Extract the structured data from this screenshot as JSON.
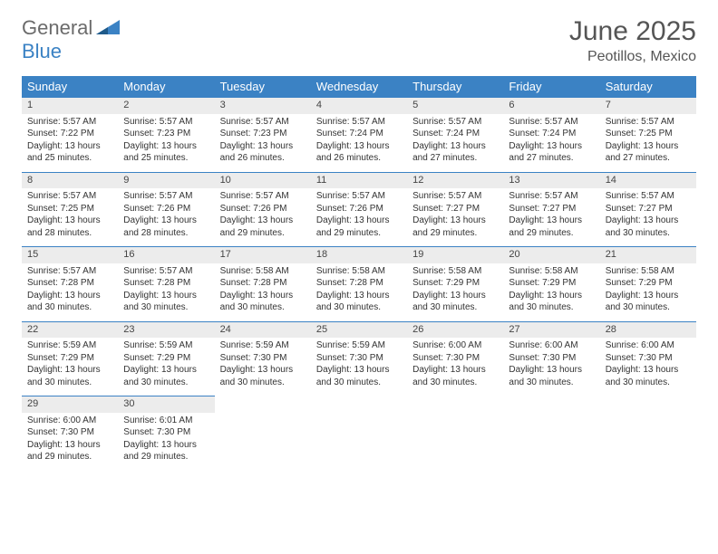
{
  "brand": {
    "general": "General",
    "blue": "Blue"
  },
  "title": "June 2025",
  "location": "Peotillos, Mexico",
  "colors": {
    "header_bg": "#3b82c4",
    "header_fg": "#ffffff",
    "daynum_bg": "#ececec",
    "border": "#3b82c4",
    "text": "#333333",
    "title_fg": "#555555"
  },
  "dayNames": [
    "Sunday",
    "Monday",
    "Tuesday",
    "Wednesday",
    "Thursday",
    "Friday",
    "Saturday"
  ],
  "weeks": [
    [
      {
        "n": "1",
        "sr": "Sunrise: 5:57 AM",
        "ss": "Sunset: 7:22 PM",
        "d1": "Daylight: 13 hours",
        "d2": "and 25 minutes."
      },
      {
        "n": "2",
        "sr": "Sunrise: 5:57 AM",
        "ss": "Sunset: 7:23 PM",
        "d1": "Daylight: 13 hours",
        "d2": "and 25 minutes."
      },
      {
        "n": "3",
        "sr": "Sunrise: 5:57 AM",
        "ss": "Sunset: 7:23 PM",
        "d1": "Daylight: 13 hours",
        "d2": "and 26 minutes."
      },
      {
        "n": "4",
        "sr": "Sunrise: 5:57 AM",
        "ss": "Sunset: 7:24 PM",
        "d1": "Daylight: 13 hours",
        "d2": "and 26 minutes."
      },
      {
        "n": "5",
        "sr": "Sunrise: 5:57 AM",
        "ss": "Sunset: 7:24 PM",
        "d1": "Daylight: 13 hours",
        "d2": "and 27 minutes."
      },
      {
        "n": "6",
        "sr": "Sunrise: 5:57 AM",
        "ss": "Sunset: 7:24 PM",
        "d1": "Daylight: 13 hours",
        "d2": "and 27 minutes."
      },
      {
        "n": "7",
        "sr": "Sunrise: 5:57 AM",
        "ss": "Sunset: 7:25 PM",
        "d1": "Daylight: 13 hours",
        "d2": "and 27 minutes."
      }
    ],
    [
      {
        "n": "8",
        "sr": "Sunrise: 5:57 AM",
        "ss": "Sunset: 7:25 PM",
        "d1": "Daylight: 13 hours",
        "d2": "and 28 minutes."
      },
      {
        "n": "9",
        "sr": "Sunrise: 5:57 AM",
        "ss": "Sunset: 7:26 PM",
        "d1": "Daylight: 13 hours",
        "d2": "and 28 minutes."
      },
      {
        "n": "10",
        "sr": "Sunrise: 5:57 AM",
        "ss": "Sunset: 7:26 PM",
        "d1": "Daylight: 13 hours",
        "d2": "and 29 minutes."
      },
      {
        "n": "11",
        "sr": "Sunrise: 5:57 AM",
        "ss": "Sunset: 7:26 PM",
        "d1": "Daylight: 13 hours",
        "d2": "and 29 minutes."
      },
      {
        "n": "12",
        "sr": "Sunrise: 5:57 AM",
        "ss": "Sunset: 7:27 PM",
        "d1": "Daylight: 13 hours",
        "d2": "and 29 minutes."
      },
      {
        "n": "13",
        "sr": "Sunrise: 5:57 AM",
        "ss": "Sunset: 7:27 PM",
        "d1": "Daylight: 13 hours",
        "d2": "and 29 minutes."
      },
      {
        "n": "14",
        "sr": "Sunrise: 5:57 AM",
        "ss": "Sunset: 7:27 PM",
        "d1": "Daylight: 13 hours",
        "d2": "and 30 minutes."
      }
    ],
    [
      {
        "n": "15",
        "sr": "Sunrise: 5:57 AM",
        "ss": "Sunset: 7:28 PM",
        "d1": "Daylight: 13 hours",
        "d2": "and 30 minutes."
      },
      {
        "n": "16",
        "sr": "Sunrise: 5:57 AM",
        "ss": "Sunset: 7:28 PM",
        "d1": "Daylight: 13 hours",
        "d2": "and 30 minutes."
      },
      {
        "n": "17",
        "sr": "Sunrise: 5:58 AM",
        "ss": "Sunset: 7:28 PM",
        "d1": "Daylight: 13 hours",
        "d2": "and 30 minutes."
      },
      {
        "n": "18",
        "sr": "Sunrise: 5:58 AM",
        "ss": "Sunset: 7:28 PM",
        "d1": "Daylight: 13 hours",
        "d2": "and 30 minutes."
      },
      {
        "n": "19",
        "sr": "Sunrise: 5:58 AM",
        "ss": "Sunset: 7:29 PM",
        "d1": "Daylight: 13 hours",
        "d2": "and 30 minutes."
      },
      {
        "n": "20",
        "sr": "Sunrise: 5:58 AM",
        "ss": "Sunset: 7:29 PM",
        "d1": "Daylight: 13 hours",
        "d2": "and 30 minutes."
      },
      {
        "n": "21",
        "sr": "Sunrise: 5:58 AM",
        "ss": "Sunset: 7:29 PM",
        "d1": "Daylight: 13 hours",
        "d2": "and 30 minutes."
      }
    ],
    [
      {
        "n": "22",
        "sr": "Sunrise: 5:59 AM",
        "ss": "Sunset: 7:29 PM",
        "d1": "Daylight: 13 hours",
        "d2": "and 30 minutes."
      },
      {
        "n": "23",
        "sr": "Sunrise: 5:59 AM",
        "ss": "Sunset: 7:29 PM",
        "d1": "Daylight: 13 hours",
        "d2": "and 30 minutes."
      },
      {
        "n": "24",
        "sr": "Sunrise: 5:59 AM",
        "ss": "Sunset: 7:30 PM",
        "d1": "Daylight: 13 hours",
        "d2": "and 30 minutes."
      },
      {
        "n": "25",
        "sr": "Sunrise: 5:59 AM",
        "ss": "Sunset: 7:30 PM",
        "d1": "Daylight: 13 hours",
        "d2": "and 30 minutes."
      },
      {
        "n": "26",
        "sr": "Sunrise: 6:00 AM",
        "ss": "Sunset: 7:30 PM",
        "d1": "Daylight: 13 hours",
        "d2": "and 30 minutes."
      },
      {
        "n": "27",
        "sr": "Sunrise: 6:00 AM",
        "ss": "Sunset: 7:30 PM",
        "d1": "Daylight: 13 hours",
        "d2": "and 30 minutes."
      },
      {
        "n": "28",
        "sr": "Sunrise: 6:00 AM",
        "ss": "Sunset: 7:30 PM",
        "d1": "Daylight: 13 hours",
        "d2": "and 30 minutes."
      }
    ],
    [
      {
        "n": "29",
        "sr": "Sunrise: 6:00 AM",
        "ss": "Sunset: 7:30 PM",
        "d1": "Daylight: 13 hours",
        "d2": "and 29 minutes."
      },
      {
        "n": "30",
        "sr": "Sunrise: 6:01 AM",
        "ss": "Sunset: 7:30 PM",
        "d1": "Daylight: 13 hours",
        "d2": "and 29 minutes."
      },
      null,
      null,
      null,
      null,
      null
    ]
  ]
}
